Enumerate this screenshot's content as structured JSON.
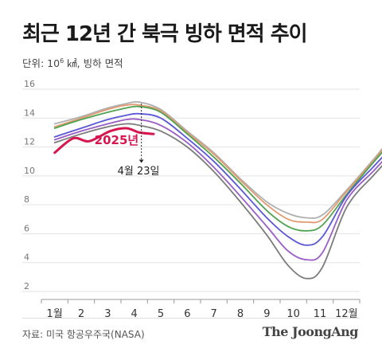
{
  "header": {
    "title": "최근 12년 간 북극 빙하 면적 추이",
    "unit_prefix": "단위: 10",
    "unit_exp": "6",
    "unit_suffix": " ㎢, 빙하 면적"
  },
  "footer": {
    "source": "자료: 미국 항공우주국(NASA)",
    "logo": "The JoongAng"
  },
  "chart_data": {
    "type": "line",
    "x_axis": {
      "tick_labels": [
        "1월",
        "2",
        "3",
        "4",
        "5",
        "6",
        "7",
        "8",
        "9",
        "10",
        "11",
        "12월"
      ]
    },
    "y_axis": {
      "tick_labels": [
        "2",
        "4",
        "6",
        "8",
        "10",
        "12",
        "14",
        "16"
      ],
      "ylim": [
        2,
        16
      ]
    },
    "grid": true,
    "annotations": [
      {
        "text": "2025년",
        "color": "#d6164f"
      },
      {
        "text": "4월 23일"
      }
    ],
    "series": [
      {
        "color": "#b0b0b0",
        "values": [
          13.6,
          14.1,
          14.7,
          15.0,
          15.1,
          14.6,
          13.1,
          11.6,
          9.8,
          8.2,
          7.4,
          7.1,
          7.3,
          9.0,
          11.1,
          12.6,
          13.5
        ]
      },
      {
        "color": "#e29a72",
        "values": [
          13.4,
          14.0,
          14.6,
          14.9,
          14.9,
          14.5,
          13.0,
          11.5,
          9.7,
          8.0,
          7.0,
          6.8,
          7.0,
          8.9,
          11.0,
          12.5,
          13.4
        ]
      },
      {
        "color": "#4fa350",
        "values": [
          13.3,
          13.9,
          14.4,
          14.7,
          14.8,
          14.4,
          12.9,
          11.3,
          9.5,
          7.6,
          6.5,
          6.2,
          6.6,
          8.7,
          10.9,
          12.3,
          13.3
        ]
      },
      {
        "color": "#5b58d6",
        "values": [
          12.7,
          13.3,
          13.9,
          14.2,
          14.3,
          14.0,
          12.6,
          11.0,
          9.1,
          7.1,
          5.8,
          5.2,
          5.8,
          8.6,
          10.6,
          11.9,
          12.6
        ]
      },
      {
        "color": "#9a5dc6",
        "values": [
          12.5,
          13.1,
          13.6,
          13.9,
          13.9,
          13.5,
          12.3,
          10.6,
          8.6,
          6.5,
          4.8,
          4.2,
          4.7,
          8.3,
          10.3,
          11.6,
          12.3
        ]
      },
      {
        "color": "#7c7c7c",
        "values": [
          12.3,
          12.9,
          13.4,
          13.6,
          13.5,
          13.1,
          12.0,
          10.3,
          8.2,
          5.9,
          3.8,
          2.9,
          3.7,
          7.8,
          10.0,
          11.3,
          12.0
        ]
      },
      {
        "color": "#d6164f",
        "values": [
          11.6,
          12.6,
          12.4,
          13.1,
          13.3,
          13.0,
          12.9
        ]
      }
    ],
    "series_x_months": [
      [
        0.5,
        1.5,
        2.5,
        3.2,
        3.7,
        4.5,
        5.5,
        6.5,
        7.5,
        8.5,
        9.3,
        10.0,
        10.6,
        11.5,
        12.5,
        13.2,
        13.9
      ],
      [
        0.5,
        1.5,
        2.5,
        3.2,
        3.7,
        4.5,
        5.5,
        6.5,
        7.5,
        8.5,
        9.3,
        10.0,
        10.6,
        11.5,
        12.5,
        13.2,
        13.9
      ],
      [
        0.5,
        1.5,
        2.5,
        3.2,
        3.7,
        4.5,
        5.5,
        6.5,
        7.5,
        8.5,
        9.3,
        10.0,
        10.6,
        11.5,
        12.5,
        13.2,
        13.9
      ],
      [
        0.5,
        1.5,
        2.5,
        3.2,
        3.7,
        4.5,
        5.5,
        6.5,
        7.5,
        8.5,
        9.3,
        10.0,
        10.6,
        11.5,
        12.5,
        13.2,
        13.9
      ],
      [
        0.5,
        1.5,
        2.5,
        3.2,
        3.7,
        4.5,
        5.5,
        6.5,
        7.5,
        8.5,
        9.3,
        10.0,
        10.6,
        11.5,
        12.5,
        13.2,
        13.9
      ],
      [
        0.5,
        1.5,
        2.5,
        3.2,
        3.7,
        4.5,
        5.5,
        6.5,
        7.5,
        8.5,
        9.3,
        10.0,
        10.6,
        11.5,
        12.5,
        13.2,
        13.9
      ],
      [
        0.5,
        1.2,
        1.8,
        2.6,
        3.2,
        3.7,
        4.23
      ]
    ]
  }
}
